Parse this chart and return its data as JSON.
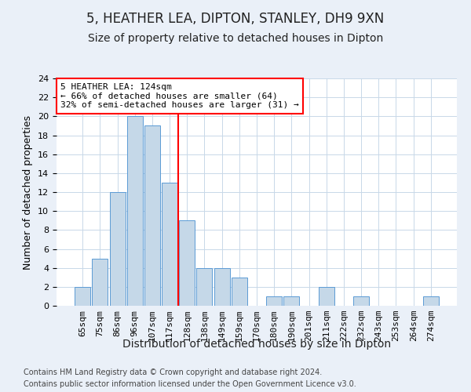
{
  "title": "5, HEATHER LEA, DIPTON, STANLEY, DH9 9XN",
  "subtitle": "Size of property relative to detached houses in Dipton",
  "xlabel": "Distribution of detached houses by size in Dipton",
  "ylabel": "Number of detached properties",
  "categories": [
    "65sqm",
    "75sqm",
    "86sqm",
    "96sqm",
    "107sqm",
    "117sqm",
    "128sqm",
    "138sqm",
    "149sqm",
    "159sqm",
    "170sqm",
    "180sqm",
    "190sqm",
    "201sqm",
    "211sqm",
    "222sqm",
    "232sqm",
    "243sqm",
    "253sqm",
    "264sqm",
    "274sqm"
  ],
  "values": [
    2,
    5,
    12,
    20,
    19,
    13,
    9,
    4,
    4,
    3,
    0,
    1,
    1,
    0,
    2,
    0,
    1,
    0,
    0,
    0,
    1
  ],
  "bar_color": "#c5d8e8",
  "bar_edge_color": "#5b9bd5",
  "vline_index": 5.5,
  "annotation_line1": "5 HEATHER LEA: 124sqm",
  "annotation_line2": "← 66% of detached houses are smaller (64)",
  "annotation_line3": "32% of semi-detached houses are larger (31) →",
  "annotation_box_color": "#ffffff",
  "annotation_box_edge_color": "red",
  "vline_color": "red",
  "ylim": [
    0,
    24
  ],
  "yticks": [
    0,
    2,
    4,
    6,
    8,
    10,
    12,
    14,
    16,
    18,
    20,
    22,
    24
  ],
  "bg_color": "#eaf0f8",
  "plot_bg_color": "#ffffff",
  "footer1": "Contains HM Land Registry data © Crown copyright and database right 2024.",
  "footer2": "Contains public sector information licensed under the Open Government Licence v3.0.",
  "title_fontsize": 12,
  "subtitle_fontsize": 10,
  "xlabel_fontsize": 10,
  "ylabel_fontsize": 9,
  "tick_fontsize": 8,
  "annotation_fontsize": 8,
  "footer_fontsize": 7
}
